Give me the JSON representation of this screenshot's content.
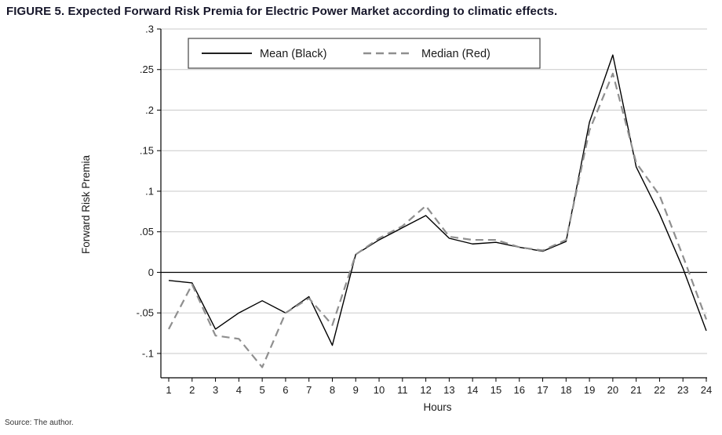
{
  "figure": {
    "title": "FIGURE 5. Expected Forward Risk Premia for Electric Power Market according to climatic effects.",
    "source": "Source: The author."
  },
  "chart_data": {
    "type": "line",
    "title": "Expected Forward Risk Premia for Electric Power Market according to climatic effects",
    "xlabel": "Hours",
    "ylabel": "Forward Risk Premia",
    "x": [
      1,
      2,
      3,
      4,
      5,
      6,
      7,
      8,
      9,
      10,
      11,
      12,
      13,
      14,
      15,
      16,
      17,
      18,
      19,
      20,
      21,
      22,
      23,
      24
    ],
    "series": [
      {
        "id": "mean",
        "name": "Mean (Black)",
        "color": "#000000",
        "width": 1.4,
        "dash": "",
        "values": [
          -0.01,
          -0.013,
          -0.07,
          -0.05,
          -0.035,
          -0.05,
          -0.03,
          -0.09,
          0.022,
          0.04,
          0.055,
          0.07,
          0.042,
          0.035,
          0.037,
          0.031,
          0.026,
          0.038,
          0.185,
          0.268,
          0.13,
          0.072,
          0.005,
          -0.072
        ]
      },
      {
        "id": "median",
        "name": "Median (Red)",
        "color": "#8f8f8f",
        "width": 2.2,
        "dash": "10 6",
        "values": [
          -0.07,
          -0.015,
          -0.078,
          -0.082,
          -0.117,
          -0.05,
          -0.032,
          -0.065,
          0.022,
          0.042,
          0.057,
          0.082,
          0.044,
          0.04,
          0.04,
          0.031,
          0.027,
          0.04,
          0.175,
          0.245,
          0.135,
          0.095,
          0.02,
          -0.058
        ]
      }
    ],
    "ylim": [
      -0.13,
      0.3
    ],
    "yticks": [
      0.3,
      0.25,
      0.2,
      0.15,
      0.1,
      0.05,
      0,
      -0.05,
      -0.1
    ],
    "ytick_labels": [
      ".3",
      ".25",
      ".2",
      ".15",
      ".1",
      ".05",
      "0",
      "-.05",
      "-.1"
    ],
    "grid": true,
    "zero_line": true,
    "legend_position": "top-inside",
    "colors": {
      "grid": "#c9c9c9",
      "axis": "#000000",
      "legend_border": "#444444"
    }
  }
}
